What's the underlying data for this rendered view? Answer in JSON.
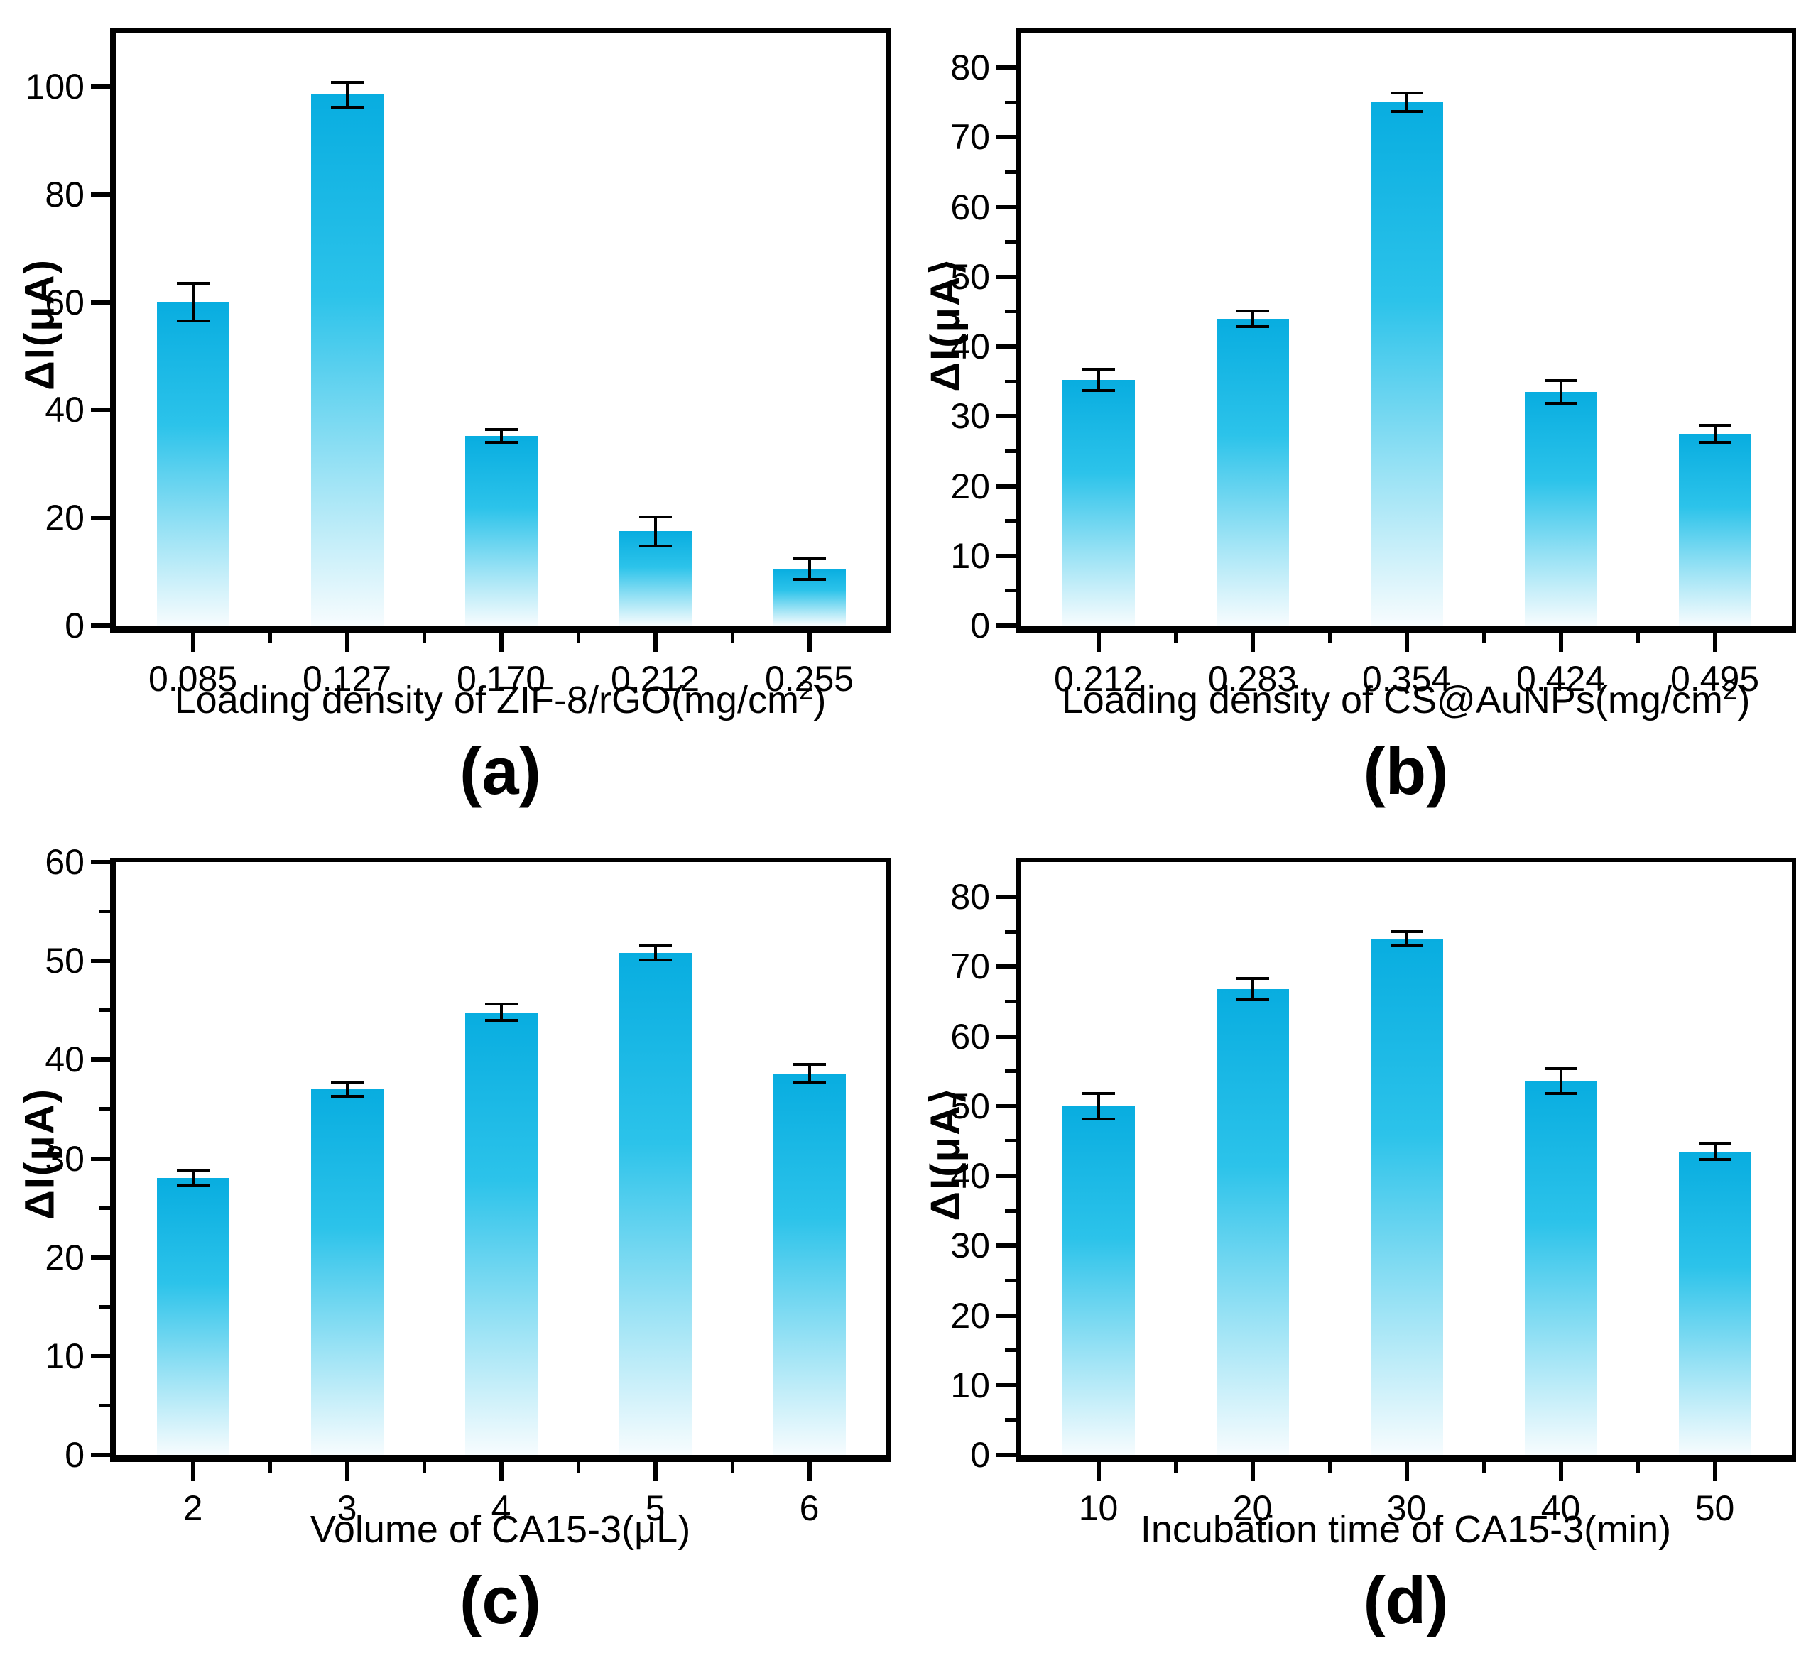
{
  "figure": {
    "background": "#ffffff"
  },
  "style": {
    "frame_color": "#000000",
    "text_color": "#000000",
    "error_bar_color": "#000000",
    "bar_gradient_top": "#08ade0",
    "bar_gradient_mid": "#2cc3ea",
    "bar_gradient_low": "#9de3f5",
    "bar_gradient_bottom": "#f7fcfe"
  },
  "chart_data": [
    {
      "type": "bar",
      "panel": "(a)",
      "ylabel": "ΔI(μA)",
      "xlabel_prefix": "Loading density of ZIF-8/rGO(mg/cm",
      "xlabel_sup": "2",
      "xlabel_suffix": ")",
      "categories": [
        "0.085",
        "0.127",
        "0.170",
        "0.212",
        "0.255"
      ],
      "values": [
        60,
        98.5,
        35.2,
        17.5,
        10.5
      ],
      "errors": [
        3.5,
        2.3,
        1.2,
        2.7,
        2.0
      ],
      "ylim": [
        0,
        110
      ],
      "yticks_major": [
        0,
        20,
        40,
        60,
        80,
        100
      ],
      "yticks_minor": [],
      "grid": "off",
      "legend": "none"
    },
    {
      "type": "bar",
      "panel": "(b)",
      "ylabel": "ΔI(μA⟩",
      "xlabel_prefix": "Loading density of CS@AuNPs(mg/cm",
      "xlabel_sup": "2",
      "xlabel_suffix": ")",
      "categories": [
        "0.212",
        "0.283",
        "0.354",
        "0.424",
        "0.495"
      ],
      "values": [
        35.2,
        44,
        75,
        33.5,
        27.5
      ],
      "errors": [
        1.5,
        1.1,
        1.3,
        1.6,
        1.2
      ],
      "ylim": [
        0,
        85
      ],
      "yticks_major": [
        0,
        10,
        20,
        30,
        40,
        50,
        60,
        70,
        80
      ],
      "yticks_minor": [
        5,
        15,
        25,
        35,
        45,
        55,
        65,
        75
      ],
      "grid": "off",
      "legend": "none"
    },
    {
      "type": "bar",
      "panel": "(c)",
      "ylabel": "ΔI(μA)",
      "xlabel_prefix": "Volume of CA15-3(μL)",
      "xlabel_sup": "",
      "xlabel_suffix": "",
      "categories": [
        "2",
        "3",
        "4",
        "5",
        "6"
      ],
      "values": [
        28,
        37,
        44.8,
        50.8,
        38.6
      ],
      "errors": [
        0.8,
        0.7,
        0.8,
        0.7,
        0.9
      ],
      "ylim": [
        0,
        60
      ],
      "yticks_major": [
        0,
        10,
        20,
        30,
        40,
        50,
        60
      ],
      "yticks_minor": [
        5,
        15,
        25,
        35,
        45,
        55
      ],
      "grid": "off",
      "legend": "none"
    },
    {
      "type": "bar",
      "panel": "(d)",
      "ylabel": "ΔI(μA⟩",
      "xlabel_prefix": "Incubation time of CA15-3(min)",
      "xlabel_sup": "",
      "xlabel_suffix": "",
      "categories": [
        "10",
        "20",
        "30",
        "40",
        "50"
      ],
      "values": [
        50,
        66.8,
        74,
        53.6,
        43.5
      ],
      "errors": [
        1.8,
        1.5,
        1.0,
        1.8,
        1.2
      ],
      "ylim": [
        0,
        85
      ],
      "yticks_major": [
        0,
        10,
        20,
        30,
        40,
        50,
        60,
        70,
        80
      ],
      "yticks_minor": [
        5,
        15,
        25,
        35,
        45,
        55,
        65,
        75
      ],
      "grid": "off",
      "legend": "none"
    }
  ]
}
